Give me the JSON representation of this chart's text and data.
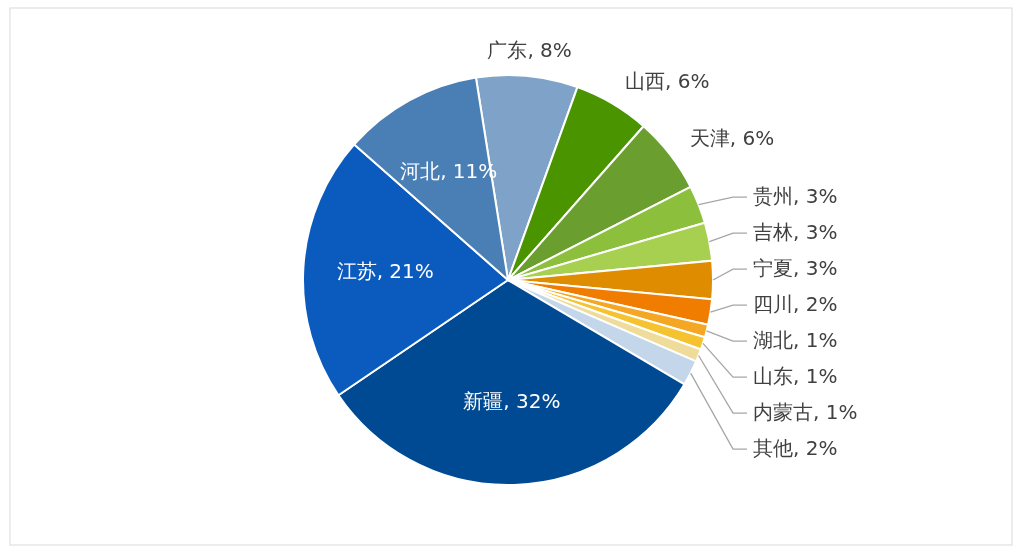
{
  "chart_data": {
    "type": "pie",
    "categories": [
      "广东",
      "山西",
      "天津",
      "贵州",
      "吉林",
      "宁夏",
      "四川",
      "湖北",
      "山东",
      "内蒙古",
      "其他",
      "新疆",
      "江苏",
      "河北"
    ],
    "values": [
      8,
      6,
      6,
      3,
      3,
      3,
      2,
      1,
      1,
      1,
      2,
      32,
      21,
      11
    ],
    "value_labels": [
      "8%",
      "6%",
      "6%",
      "3%",
      "3%",
      "3%",
      "2%",
      "1%",
      "1%",
      "1%",
      "2%",
      "32%",
      "21%",
      "11%"
    ],
    "colors": [
      "#7fa3c8",
      "#4a9400",
      "#6a9f30",
      "#8cbf3c",
      "#a8d050",
      "#e08c00",
      "#f07d00",
      "#f5a623",
      "#f5c330",
      "#f0dc9a",
      "#c4d6ea",
      "#004a93",
      "#0b5bbf",
      "#4a7fb5"
    ]
  }
}
